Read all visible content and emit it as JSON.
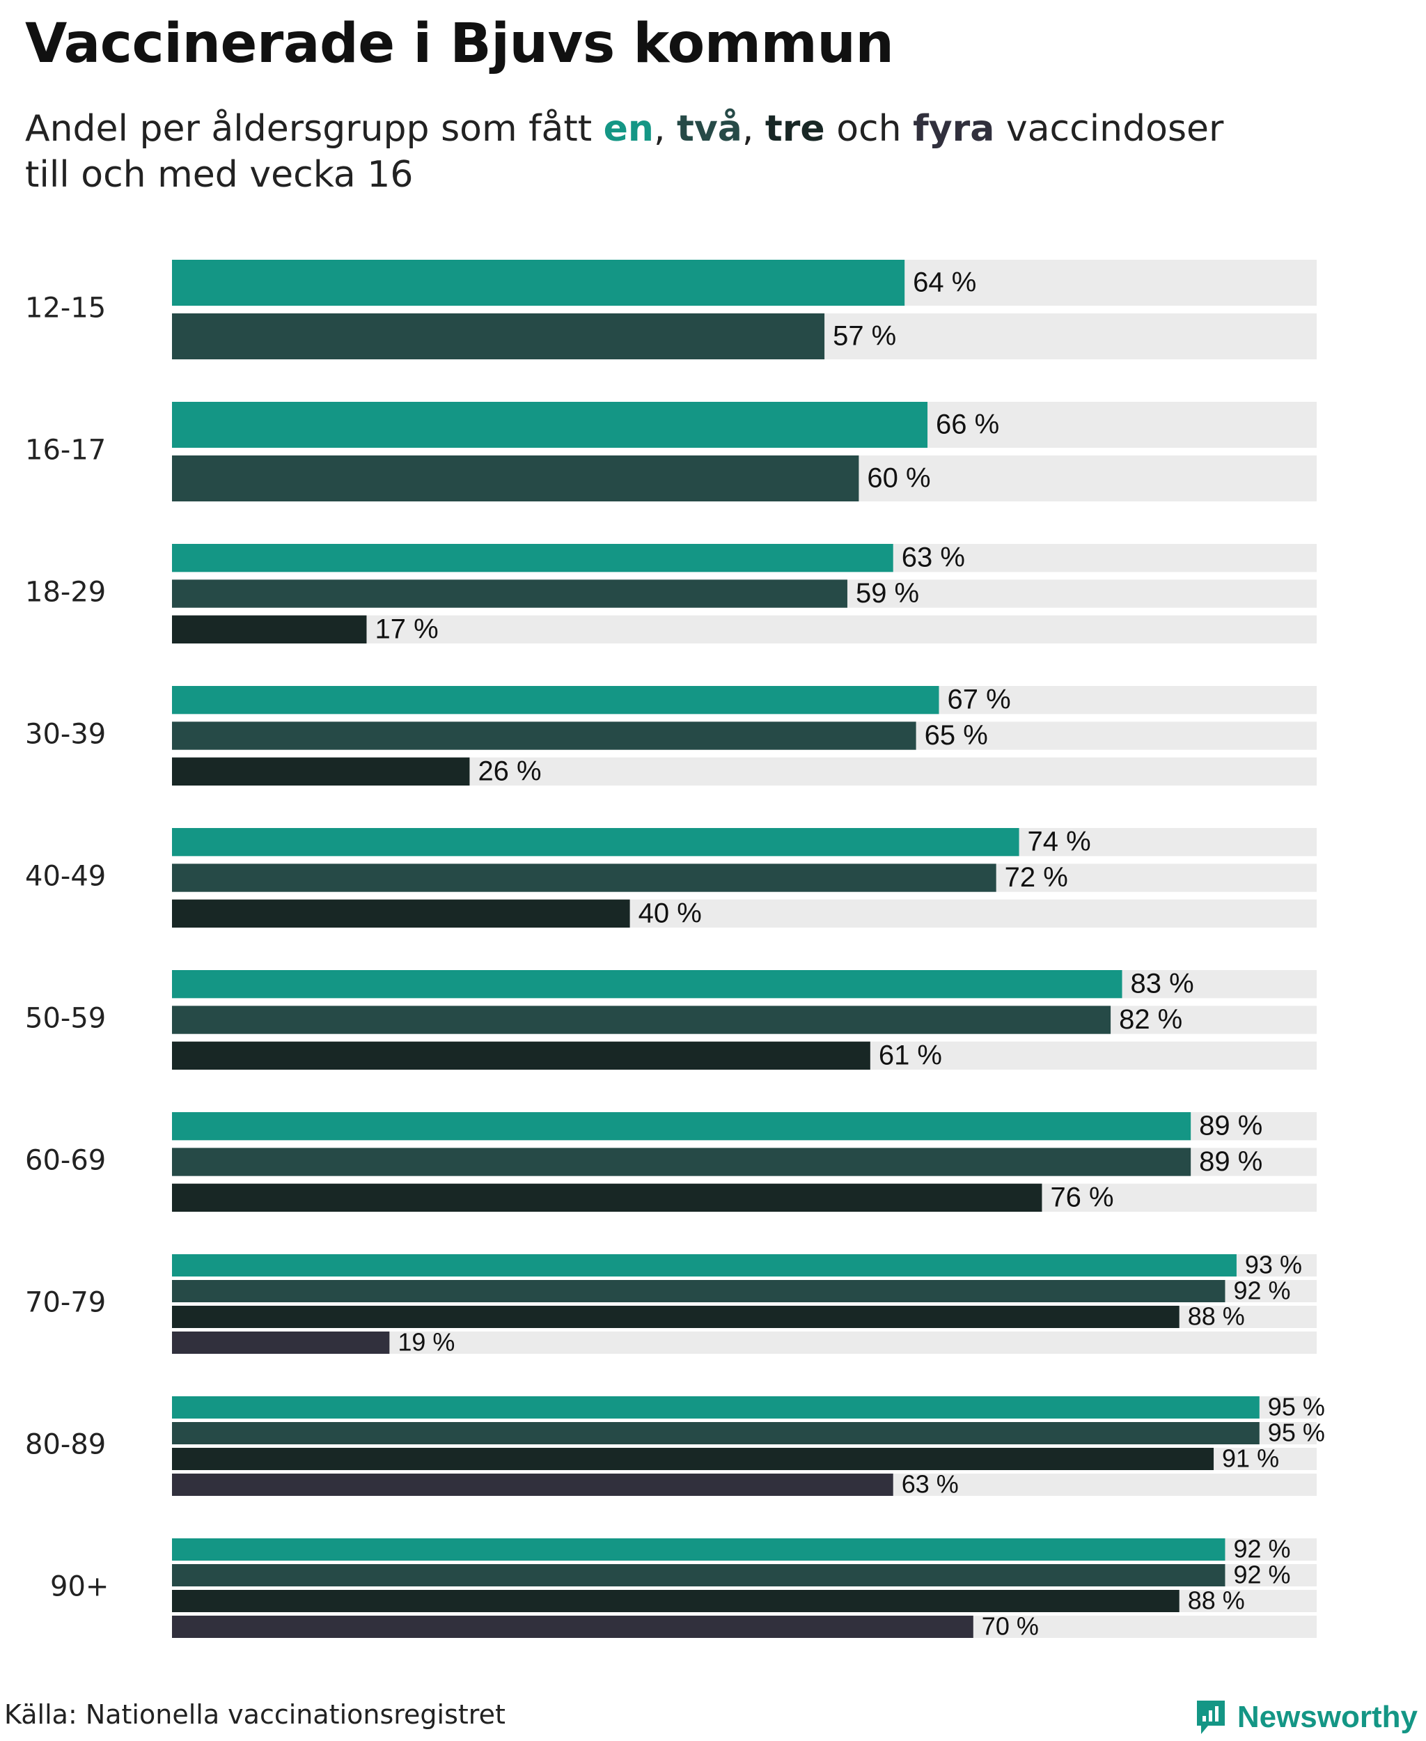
{
  "title": "Vaccinerade i Bjuvs kommun",
  "subtitle": {
    "p1": "Andel per åldersgrupp som fått ",
    "k1": "en",
    "s1": ", ",
    "k2": "två",
    "s2": ", ",
    "k3": "tre",
    "s3": " och ",
    "k4": "fyra",
    "p2": " vaccindoser",
    "line2": "till och med vecka 16"
  },
  "source": "Källa: Nationella vaccinationsregistret",
  "brand": "Newsworthy",
  "colors": {
    "en": "#149685",
    "tva": "#264a47",
    "tre": "#182725",
    "fyra": "#31303d",
    "track": "#ebebeb"
  },
  "chart_data": {
    "type": "bar",
    "orientation": "horizontal",
    "xlim": [
      0,
      100
    ],
    "unit_suffix": " %",
    "categories": [
      "12-15",
      "16-17",
      "18-29",
      "30-39",
      "40-49",
      "50-59",
      "60-69",
      "70-79",
      "80-89",
      "90+"
    ],
    "series": [
      {
        "name": "en",
        "color": "#149685",
        "values": [
          64,
          66,
          63,
          67,
          74,
          83,
          89,
          93,
          95,
          92
        ]
      },
      {
        "name": "två",
        "color": "#264a47",
        "values": [
          57,
          60,
          59,
          65,
          72,
          82,
          89,
          92,
          95,
          92
        ]
      },
      {
        "name": "tre",
        "color": "#182725",
        "values": [
          null,
          null,
          17,
          26,
          40,
          61,
          76,
          88,
          91,
          88
        ]
      },
      {
        "name": "fyra",
        "color": "#31303d",
        "values": [
          null,
          null,
          null,
          null,
          null,
          null,
          null,
          19,
          63,
          70
        ]
      }
    ]
  }
}
